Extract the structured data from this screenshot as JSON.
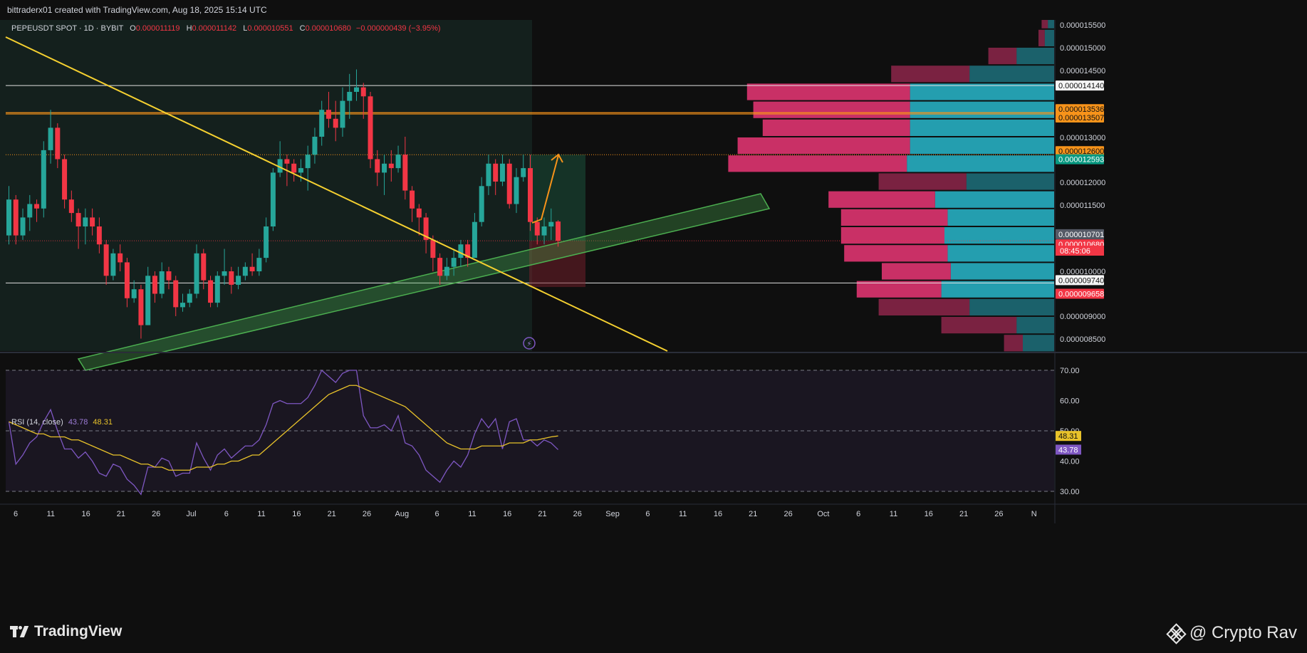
{
  "header": {
    "credit": "bittraderx01 created with TradingView.com, Aug 18, 2025 15:14 UTC"
  },
  "legend": {
    "symbol": "PEPEUSDT SPOT · 1D · BYBIT",
    "open_label": "O",
    "open": "0.000011119",
    "high_label": "H",
    "high": "0.000011142",
    "low_label": "L",
    "low": "0.000010551",
    "close_label": "C",
    "close": "0.000010680",
    "change": "−0.000000439 (−3.95%)"
  },
  "rsi": {
    "label": "RSI (14, close)",
    "value": "43.78",
    "ma_value": "48.31"
  },
  "footer": {
    "brand": "TradingView",
    "author": "@ Crypto Rav"
  },
  "colors": {
    "bull": "#26a69a",
    "bear": "#f23645",
    "rsi": "#7e57c2",
    "rsi_ma": "#e8c22a",
    "trendline": "#f5d030",
    "channel": "#4caf50",
    "resistance": "#f7931a",
    "vp_up": "#26a6b8",
    "vp_down": "#d4336b"
  },
  "chart_data": {
    "type": "candlestick",
    "symbol": "PEPEUSDT SPOT",
    "timeframe": "1D",
    "exchange": "BYBIT",
    "x_axis_ticks": [
      "6",
      "11",
      "16",
      "21",
      "26",
      "Jul",
      "6",
      "11",
      "16",
      "21",
      "26",
      "Aug",
      "6",
      "11",
      "16",
      "21",
      "26",
      "Sep",
      "6",
      "11",
      "16",
      "21",
      "26",
      "Oct",
      "6",
      "11",
      "16",
      "21",
      "26",
      "N"
    ],
    "price_ticks": [
      "0.000015500",
      "0.000015000",
      "0.000014500",
      "0.000013000",
      "0.000012000",
      "0.000011500",
      "0.000010000",
      "0.000009000",
      "0.000008500"
    ],
    "price_labels": [
      {
        "text": "0.000014140",
        "value": 1.414e-05,
        "style": "white"
      },
      {
        "text": "0.000013536",
        "value": 1.3536e-05,
        "style": "orange"
      },
      {
        "text": "0.000013507",
        "value": 1.3507e-05,
        "style": "orange"
      },
      {
        "text": "0.000012600",
        "value": 1.26e-05,
        "style": "orange"
      },
      {
        "text": "0.000012593",
        "value": 1.2593e-05,
        "style": "green"
      },
      {
        "text": "0.000010701",
        "value": 1.0701e-05,
        "style": "gray"
      },
      {
        "text": "0.000010680",
        "value": 1.068e-05,
        "style": "red"
      },
      {
        "text": "0.000009740",
        "value": 9.74e-06,
        "style": "white"
      },
      {
        "text": "0.000009658",
        "value": 9.658e-06,
        "style": "red"
      }
    ],
    "countdown": "08:45:06",
    "candles": [
      [
        1.08e-05,
        1.16e-05,
        1.19e-05,
        1.06e-05
      ],
      [
        1.16e-05,
        1.08e-05,
        1.17e-05,
        1.06e-05
      ],
      [
        1.08e-05,
        1.12e-05,
        1.14e-05,
        1.07e-05
      ],
      [
        1.12e-05,
        1.15e-05,
        1.17e-05,
        1.09e-05
      ],
      [
        1.15e-05,
        1.14e-05,
        1.16e-05,
        1.11e-05
      ],
      [
        1.14e-05,
        1.27e-05,
        1.29e-05,
        1.12e-05
      ],
      [
        1.27e-05,
        1.32e-05,
        1.36e-05,
        1.24e-05
      ],
      [
        1.32e-05,
        1.25e-05,
        1.33e-05,
        1.23e-05
      ],
      [
        1.25e-05,
        1.16e-05,
        1.26e-05,
        1.14e-05
      ],
      [
        1.16e-05,
        1.13e-05,
        1.18e-05,
        1.11e-05
      ],
      [
        1.13e-05,
        1.1e-05,
        1.14e-05,
        1.05e-05
      ],
      [
        1.1e-05,
        1.12e-05,
        1.14e-05,
        1.06e-05
      ],
      [
        1.12e-05,
        1.1e-05,
        1.14e-05,
        1.08e-05
      ],
      [
        1.1e-05,
        1.06e-05,
        1.12e-05,
        1.04e-05
      ],
      [
        1.06e-05,
        9.9e-06,
        1.07e-05,
        9.7e-06
      ],
      [
        9.9e-06,
        1.04e-05,
        1.05e-05,
        9.8e-06
      ],
      [
        1.04e-05,
        1.02e-05,
        1.06e-05,
        1e-05
      ],
      [
        1.02e-05,
        9.4e-06,
        1.03e-05,
        9.2e-06
      ],
      [
        9.4e-06,
        9.6e-06,
        9.8e-06,
        9.3e-06
      ],
      [
        9.6e-06,
        8.8e-06,
        9.7e-06,
        8.5e-06
      ],
      [
        8.8e-06,
        9.9e-06,
        1.01e-05,
        8.8e-06
      ],
      [
        9.9e-06,
        9.5e-06,
        1e-05,
        9.3e-06
      ],
      [
        9.5e-06,
        1e-05,
        1.02e-05,
        9.4e-06
      ],
      [
        1e-05,
        9.8e-06,
        1.01e-05,
        9.6e-06
      ],
      [
        9.8e-06,
        9.2e-06,
        9.9e-06,
        9e-06
      ],
      [
        9.2e-06,
        9.3e-06,
        9.5e-06,
        9.1e-06
      ],
      [
        9.3e-06,
        9.5e-06,
        9.6e-06,
        9.2e-06
      ],
      [
        9.5e-06,
        1.04e-05,
        1.06e-05,
        9.4e-06
      ],
      [
        1.04e-05,
        9.8e-06,
        1.05e-05,
        9.6e-06
      ],
      [
        9.8e-06,
        9.3e-06,
        9.9e-06,
        9.2e-06
      ],
      [
        9.3e-06,
        9.9e-06,
        1e-05,
        9.2e-06
      ],
      [
        9.9e-06,
        1e-05,
        1.05e-05,
        9.7e-06
      ],
      [
        1e-05,
        9.7e-06,
        1.01e-05,
        9.5e-06
      ],
      [
        9.7e-06,
        9.9e-06,
        1.01e-05,
        9.6e-06
      ],
      [
        9.9e-06,
        1.01e-05,
        1.02e-05,
        9.8e-06
      ],
      [
        1.01e-05,
        1e-05,
        1.04e-05,
        9.9e-06
      ],
      [
        1e-05,
        1.03e-05,
        1.05e-05,
        9.9e-06
      ],
      [
        1.03e-05,
        1.1e-05,
        1.12e-05,
        1.02e-05
      ],
      [
        1.1e-05,
        1.22e-05,
        1.23e-05,
        1.09e-05
      ],
      [
        1.22e-05,
        1.25e-05,
        1.29e-05,
        1.21e-05
      ],
      [
        1.25e-05,
        1.24e-05,
        1.26e-05,
        1.19e-05
      ],
      [
        1.24e-05,
        1.22e-05,
        1.25e-05,
        1.2e-05
      ],
      [
        1.22e-05,
        1.23e-05,
        1.25e-05,
        1.2e-05
      ],
      [
        1.23e-05,
        1.26e-05,
        1.28e-05,
        1.18e-05
      ],
      [
        1.26e-05,
        1.3e-05,
        1.32e-05,
        1.24e-05
      ],
      [
        1.3e-05,
        1.36e-05,
        1.38e-05,
        1.28e-05
      ],
      [
        1.36e-05,
        1.34e-05,
        1.4e-05,
        1.32e-05
      ],
      [
        1.34e-05,
        1.32e-05,
        1.38e-05,
        1.29e-05
      ],
      [
        1.32e-05,
        1.38e-05,
        1.41e-05,
        1.3e-05
      ],
      [
        1.38e-05,
        1.4e-05,
        1.44e-05,
        1.34e-05
      ],
      [
        1.4e-05,
        1.41e-05,
        1.45e-05,
        1.38e-05
      ],
      [
        1.41e-05,
        1.39e-05,
        1.42e-05,
        1.34e-05
      ],
      [
        1.39e-05,
        1.25e-05,
        1.4e-05,
        1.23e-05
      ],
      [
        1.25e-05,
        1.22e-05,
        1.27e-05,
        1.19e-05
      ],
      [
        1.22e-05,
        1.24e-05,
        1.26e-05,
        1.17e-05
      ],
      [
        1.24e-05,
        1.23e-05,
        1.27e-05,
        1.2e-05
      ],
      [
        1.23e-05,
        1.26e-05,
        1.28e-05,
        1.22e-05
      ],
      [
        1.26e-05,
        1.18e-05,
        1.3e-05,
        1.16e-05
      ],
      [
        1.18e-05,
        1.14e-05,
        1.19e-05,
        1.11e-05
      ],
      [
        1.14e-05,
        1.12e-05,
        1.15e-05,
        1.08e-05
      ],
      [
        1.12e-05,
        1.07e-05,
        1.13e-05,
        1.04e-05
      ],
      [
        1.07e-05,
        1.03e-05,
        1.08e-05,
        1e-05
      ],
      [
        1.03e-05,
        9.9e-06,
        1.04e-05,
        9.7e-06
      ],
      [
        9.9e-06,
        1.01e-05,
        1.03e-05,
        9.8e-06
      ],
      [
        1.01e-05,
        1.03e-05,
        1.05e-05,
        9.9e-06
      ],
      [
        1.03e-05,
        1.06e-05,
        1.07e-05,
        1.01e-05
      ],
      [
        1.06e-05,
        1.03e-05,
        1.07e-05,
        1.01e-05
      ],
      [
        1.03e-05,
        1.11e-05,
        1.13e-05,
        1.03e-05
      ],
      [
        1.11e-05,
        1.19e-05,
        1.21e-05,
        1.1e-05
      ],
      [
        1.19e-05,
        1.24e-05,
        1.26e-05,
        1.17e-05
      ],
      [
        1.24e-05,
        1.2e-05,
        1.25e-05,
        1.17e-05
      ],
      [
        1.2e-05,
        1.24e-05,
        1.26e-05,
        1.19e-05
      ],
      [
        1.24e-05,
        1.15e-05,
        1.25e-05,
        1.14e-05
      ],
      [
        1.15e-05,
        1.21e-05,
        1.23e-05,
        1.13e-05
      ],
      [
        1.21e-05,
        1.23e-05,
        1.26e-05,
        1.2e-05
      ],
      [
        1.23e-05,
        1.11e-05,
        1.26e-05,
        1.09e-05
      ],
      [
        1.11e-05,
        1.08e-05,
        1.12e-05,
        1.06e-05
      ],
      [
        1.08e-05,
        1.1e-05,
        1.12e-05,
        1.06e-05
      ],
      [
        1.1e-05,
        1.11e-05,
        1.14e-05,
        1.07e-05
      ],
      [
        1.111e-05,
        1.068e-05,
        1.114e-05,
        1.055e-05
      ]
    ],
    "rsi": {
      "name": "RSI (14, close)",
      "ylim": [
        25,
        75
      ],
      "ticks": [
        "70.00",
        "60.00",
        "50.00",
        "40.00",
        "30.00"
      ],
      "bands": [
        70,
        50,
        30
      ],
      "values": [
        53,
        39,
        42,
        46,
        48,
        53,
        57,
        50,
        44,
        44,
        41,
        43,
        40,
        36,
        35,
        39,
        38,
        34,
        32,
        29,
        38,
        38,
        41,
        40,
        35,
        36,
        36,
        46,
        41,
        37,
        42,
        44,
        41,
        43,
        45,
        45,
        47,
        52,
        59,
        60,
        59,
        59,
        59,
        61,
        65,
        70,
        68,
        66,
        69,
        70,
        70,
        55,
        51,
        51,
        52,
        50,
        55,
        46,
        45,
        42,
        37,
        35,
        33,
        37,
        40,
        38,
        42,
        49,
        54,
        51,
        54,
        44,
        53,
        54,
        47,
        47,
        45,
        47,
        46,
        43.78
      ],
      "ma_values": [
        53,
        52,
        51,
        50,
        49,
        49,
        48,
        48,
        48,
        47,
        47,
        46,
        45,
        44,
        43,
        42,
        42,
        41,
        40,
        39,
        39,
        38,
        38,
        37,
        37,
        37,
        37,
        38,
        38,
        38,
        39,
        39,
        40,
        40,
        41,
        42,
        42,
        44,
        46,
        48,
        50,
        52,
        54,
        56,
        58,
        60,
        62,
        63,
        64,
        65,
        65,
        64,
        63,
        62,
        61,
        60,
        59,
        58,
        56,
        54,
        52,
        50,
        48,
        46,
        45,
        44,
        44,
        44,
        45,
        45,
        45,
        45,
        46,
        46,
        46,
        47,
        47,
        47.5,
        48,
        48.31
      ]
    },
    "volume_profile": {
      "price_range": [
        8.2e-06,
        1.58e-05
      ],
      "rows": [
        {
          "up": 0.1,
          "down": 0.06
        },
        {
          "up": 0.12,
          "down": 0.24
        },
        {
          "up": 0.27,
          "down": 0.29
        },
        {
          "up": 0.36,
          "down": 0.27
        },
        {
          "up": 0.33,
          "down": 0.22
        },
        {
          "up": 0.34,
          "down": 0.33
        },
        {
          "up": 0.35,
          "down": 0.33
        },
        {
          "up": 0.34,
          "down": 0.34
        },
        {
          "up": 0.38,
          "down": 0.34
        },
        {
          "up": 0.28,
          "down": 0.28
        },
        {
          "up": 0.47,
          "down": 0.57
        },
        {
          "up": 0.46,
          "down": 0.55
        },
        {
          "up": 0.46,
          "down": 0.47
        },
        {
          "up": 0.46,
          "down": 0.5
        },
        {
          "up": 0.46,
          "down": 0.52
        },
        {
          "up": 0.27,
          "down": 0.25
        },
        {
          "up": 0.12,
          "down": 0.09
        },
        {
          "up": 0.03,
          "down": 0.02
        },
        {
          "up": 0.02,
          "down": 0.02
        }
      ]
    },
    "levels": [
      1.414e-05,
      1.3536e-05,
      1.3507e-05,
      1.26e-05,
      1.068e-05,
      9.74e-06
    ]
  }
}
